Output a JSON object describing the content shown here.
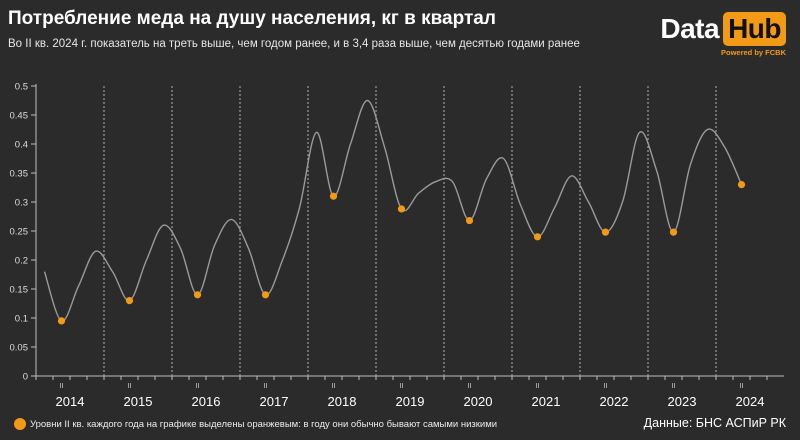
{
  "header": {
    "title": "Потребление меда на душу населения, кг в квартал",
    "subtitle": "Во II кв. 2024 г. показатель на треть выше, чем годом ранее, и в 3,4 раза выше, чем десятью годами ранее"
  },
  "logo": {
    "part1": "Data",
    "part2": "Hub",
    "tagline": "Powered by FCBK",
    "accent_color": "#f29a16"
  },
  "footer": {
    "note": "Уровни II кв. каждого года на графике выделены оранжевым: в году они обычно бывают самыми низкими",
    "source": "Данные: БНС АСПиР РК"
  },
  "chart_data": {
    "type": "line",
    "years": [
      "2014",
      "2015",
      "2016",
      "2017",
      "2018",
      "2019",
      "2020",
      "2021",
      "2022",
      "2023",
      "2024"
    ],
    "quarter_tick_label": "II",
    "x": [
      "2014 I",
      "2014 II",
      "2014 III",
      "2014 IV",
      "2015 I",
      "2015 II",
      "2015 III",
      "2015 IV",
      "2016 I",
      "2016 II",
      "2016 III",
      "2016 IV",
      "2017 I",
      "2017 II",
      "2017 III",
      "2017 IV",
      "2018 I",
      "2018 II",
      "2018 III",
      "2018 IV",
      "2019 I",
      "2019 II",
      "2019 III",
      "2019 IV",
      "2020 I",
      "2020 II",
      "2020 III",
      "2020 IV",
      "2021 I",
      "2021 II",
      "2021 III",
      "2021 IV",
      "2022 I",
      "2022 II",
      "2022 III",
      "2022 IV",
      "2023 I",
      "2023 II",
      "2023 III",
      "2023 IV",
      "2024 I",
      "2024 II"
    ],
    "values": [
      0.18,
      0.095,
      0.155,
      0.215,
      0.18,
      0.13,
      0.2,
      0.26,
      0.22,
      0.14,
      0.225,
      0.27,
      0.22,
      0.14,
      0.2,
      0.29,
      0.42,
      0.31,
      0.4,
      0.475,
      0.395,
      0.288,
      0.315,
      0.335,
      0.335,
      0.268,
      0.34,
      0.375,
      0.295,
      0.24,
      0.29,
      0.345,
      0.3,
      0.248,
      0.3,
      0.42,
      0.355,
      0.248,
      0.365,
      0.425,
      0.395,
      0.33
    ],
    "highlight_quarter": "II",
    "highlight_color": "#f29a16",
    "line_color": "#9a9a9a",
    "ylim": [
      0,
      0.5
    ],
    "yticks": [
      "0",
      "0.05",
      "0.1",
      "0.15",
      "0.2",
      "0.25",
      "0.3",
      "0.35",
      "0.4",
      "0.45",
      "0.5"
    ],
    "year_separators": true,
    "grid": false
  }
}
